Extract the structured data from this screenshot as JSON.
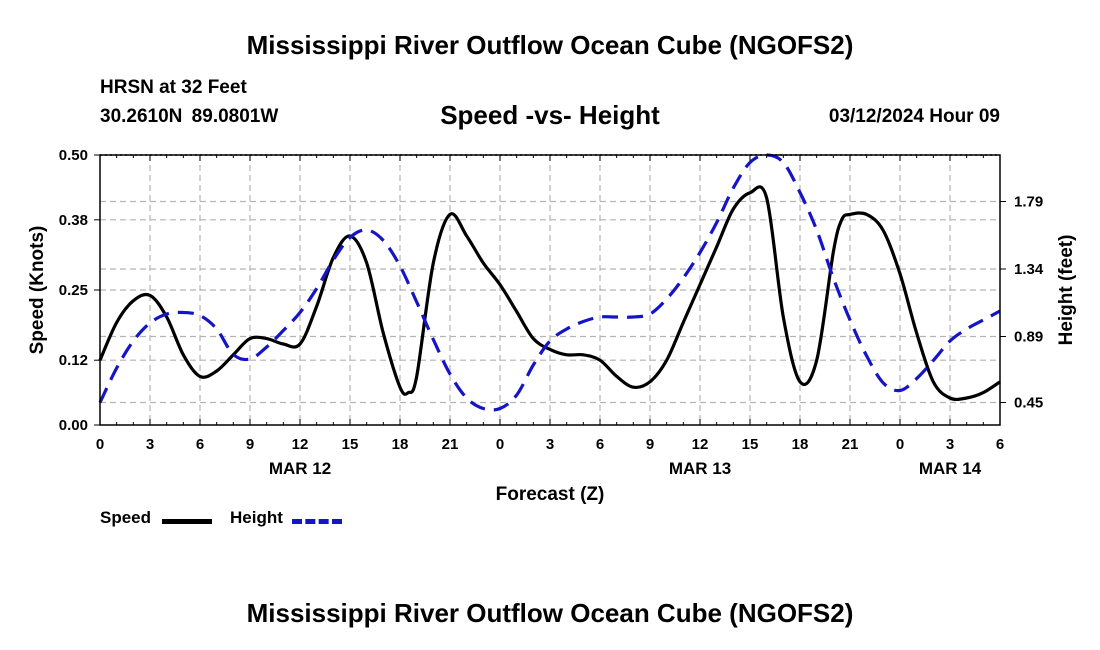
{
  "header": {
    "title": "Mississippi River Outflow Ocean Cube (NGOFS2)",
    "station": "HRSN at 32 Feet",
    "coords": "30.2610N  89.0801W",
    "subtitle": "Speed -vs- Height",
    "datetime": "03/12/2024 Hour 09"
  },
  "footer": {
    "title": "Mississippi River Outflow Ocean Cube (NGOFS2)"
  },
  "legend": {
    "speed_label": "Speed",
    "height_label": "Height"
  },
  "colors": {
    "speed": "#000000",
    "height": "#1515c8",
    "grid": "#b4b4b4"
  },
  "chart_data": {
    "type": "line",
    "xlabel": "Forecast (Z)",
    "ylabel_left": "Speed (Knots)",
    "ylabel_right": "Height (feet)",
    "x_unit": "hours from 03/12/2024 00Z",
    "xlim": [
      0,
      54
    ],
    "ylim_left": [
      0,
      0.5
    ],
    "ylim_right": [
      0.3,
      2.1
    ],
    "xticks": [
      0,
      3,
      6,
      9,
      12,
      15,
      18,
      21,
      24,
      27,
      30,
      33,
      36,
      39,
      42,
      45,
      48,
      51,
      54
    ],
    "xtick_labels": [
      "0",
      "3",
      "6",
      "9",
      "12",
      "15",
      "18",
      "21",
      "0",
      "3",
      "6",
      "9",
      "12",
      "15",
      "18",
      "21",
      "0",
      "3",
      "6"
    ],
    "date_labels": [
      {
        "x": 12,
        "label": "MAR 12"
      },
      {
        "x": 36,
        "label": "MAR 13"
      },
      {
        "x": 51,
        "label": "MAR 14"
      }
    ],
    "yticks_left": [
      0.0,
      0.12,
      0.25,
      0.38,
      0.5
    ],
    "ytick_labels_left": [
      "0.00",
      "0.12",
      "0.25",
      "0.38",
      "0.50"
    ],
    "yticks_right": [
      0.45,
      0.89,
      1.34,
      1.79
    ],
    "ytick_labels_right": [
      "0.45",
      "0.89",
      "1.34",
      "1.79"
    ],
    "grid": true,
    "series": [
      {
        "name": "Speed",
        "axis": "left",
        "style": "solid",
        "x": [
          0,
          1,
          2,
          3,
          4,
          5,
          6,
          7,
          8,
          9,
          10,
          11,
          12,
          13,
          14,
          15,
          16,
          17,
          18,
          18.5,
          19,
          20,
          21,
          22,
          23,
          24,
          25,
          26,
          27,
          28,
          29,
          30,
          31,
          32,
          33,
          34,
          35,
          36,
          37,
          38,
          39,
          40,
          41,
          42,
          43,
          44,
          44.5,
          45,
          46,
          47,
          48,
          49,
          50,
          51,
          52,
          53,
          54
        ],
        "values": [
          0.12,
          0.19,
          0.23,
          0.24,
          0.2,
          0.13,
          0.09,
          0.1,
          0.13,
          0.16,
          0.16,
          0.15,
          0.15,
          0.22,
          0.31,
          0.35,
          0.3,
          0.17,
          0.07,
          0.06,
          0.09,
          0.3,
          0.39,
          0.35,
          0.3,
          0.26,
          0.21,
          0.16,
          0.14,
          0.13,
          0.13,
          0.12,
          0.09,
          0.07,
          0.08,
          0.12,
          0.19,
          0.26,
          0.33,
          0.4,
          0.43,
          0.42,
          0.2,
          0.08,
          0.12,
          0.32,
          0.38,
          0.39,
          0.39,
          0.36,
          0.28,
          0.17,
          0.08,
          0.05,
          0.05,
          0.06,
          0.08
        ]
      },
      {
        "name": "Height",
        "axis": "right",
        "style": "dashed",
        "x": [
          0,
          1,
          2,
          3,
          4,
          5,
          6,
          7,
          8,
          9,
          10,
          11,
          12,
          13,
          14,
          15,
          16,
          17,
          18,
          19,
          20,
          21,
          22,
          23,
          24,
          25,
          26,
          27,
          28,
          29,
          30,
          31,
          32,
          33,
          34,
          35,
          36,
          37,
          38,
          39,
          40,
          41,
          42,
          43,
          44,
          45,
          46,
          47,
          48,
          49,
          50,
          51,
          52,
          53,
          54
        ],
        "values": [
          0.45,
          0.68,
          0.86,
          0.98,
          1.04,
          1.05,
          1.03,
          0.94,
          0.77,
          0.74,
          0.82,
          0.93,
          1.05,
          1.21,
          1.4,
          1.55,
          1.6,
          1.53,
          1.36,
          1.12,
          0.87,
          0.64,
          0.48,
          0.41,
          0.41,
          0.5,
          0.7,
          0.86,
          0.94,
          0.99,
          1.02,
          1.02,
          1.02,
          1.04,
          1.14,
          1.28,
          1.45,
          1.65,
          1.88,
          2.05,
          2.1,
          2.05,
          1.85,
          1.6,
          1.28,
          1.0,
          0.76,
          0.58,
          0.53,
          0.61,
          0.73,
          0.86,
          0.94,
          1.0,
          1.06
        ]
      }
    ]
  }
}
